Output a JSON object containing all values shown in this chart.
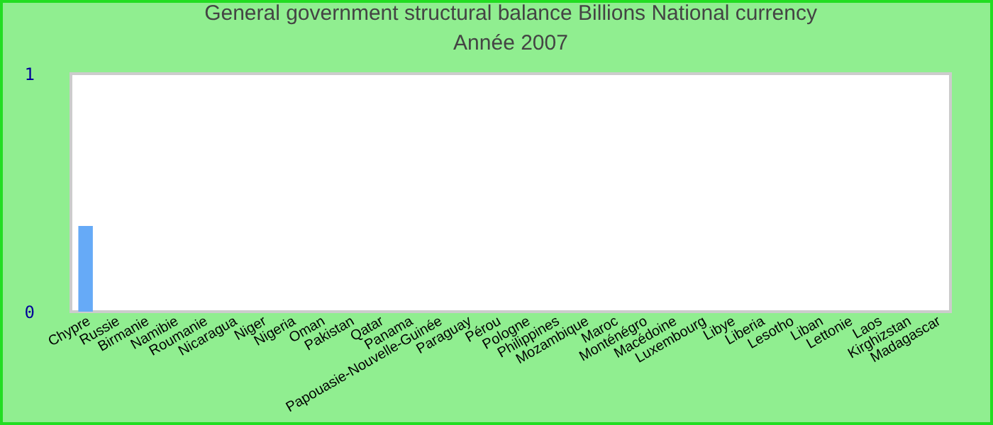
{
  "chart_data": {
    "type": "bar",
    "title": "General government structural balance Billions National currency",
    "subtitle": "Année 2007",
    "categories": [
      "Chypre",
      "Russie",
      "Birmanie",
      "Namibie",
      "Roumanie",
      "Nicaragua",
      "Niger",
      "Nigeria",
      "Oman",
      "Pakistan",
      "Qatar",
      "Panama",
      "Papouasie-Nouvelle-Guinée",
      "Paraguay",
      "Pérou",
      "Pologne",
      "Philippines",
      "Mozambique",
      "Maroc",
      "Monténégro",
      "Macédoine",
      "Luxembourg",
      "Libye",
      "Liberia",
      "Lesotho",
      "Liban",
      "Lettonie",
      "Laos",
      "Kirghizstan",
      "Madagascar"
    ],
    "values": [
      0.36,
      null,
      null,
      null,
      null,
      null,
      null,
      null,
      null,
      null,
      null,
      null,
      null,
      null,
      null,
      null,
      null,
      null,
      null,
      null,
      null,
      null,
      null,
      null,
      null,
      null,
      null,
      null,
      null,
      null
    ],
    "color": "#66aaf7",
    "ylim": [
      0,
      1
    ],
    "yticks": [
      0,
      1
    ],
    "grid": false
  }
}
